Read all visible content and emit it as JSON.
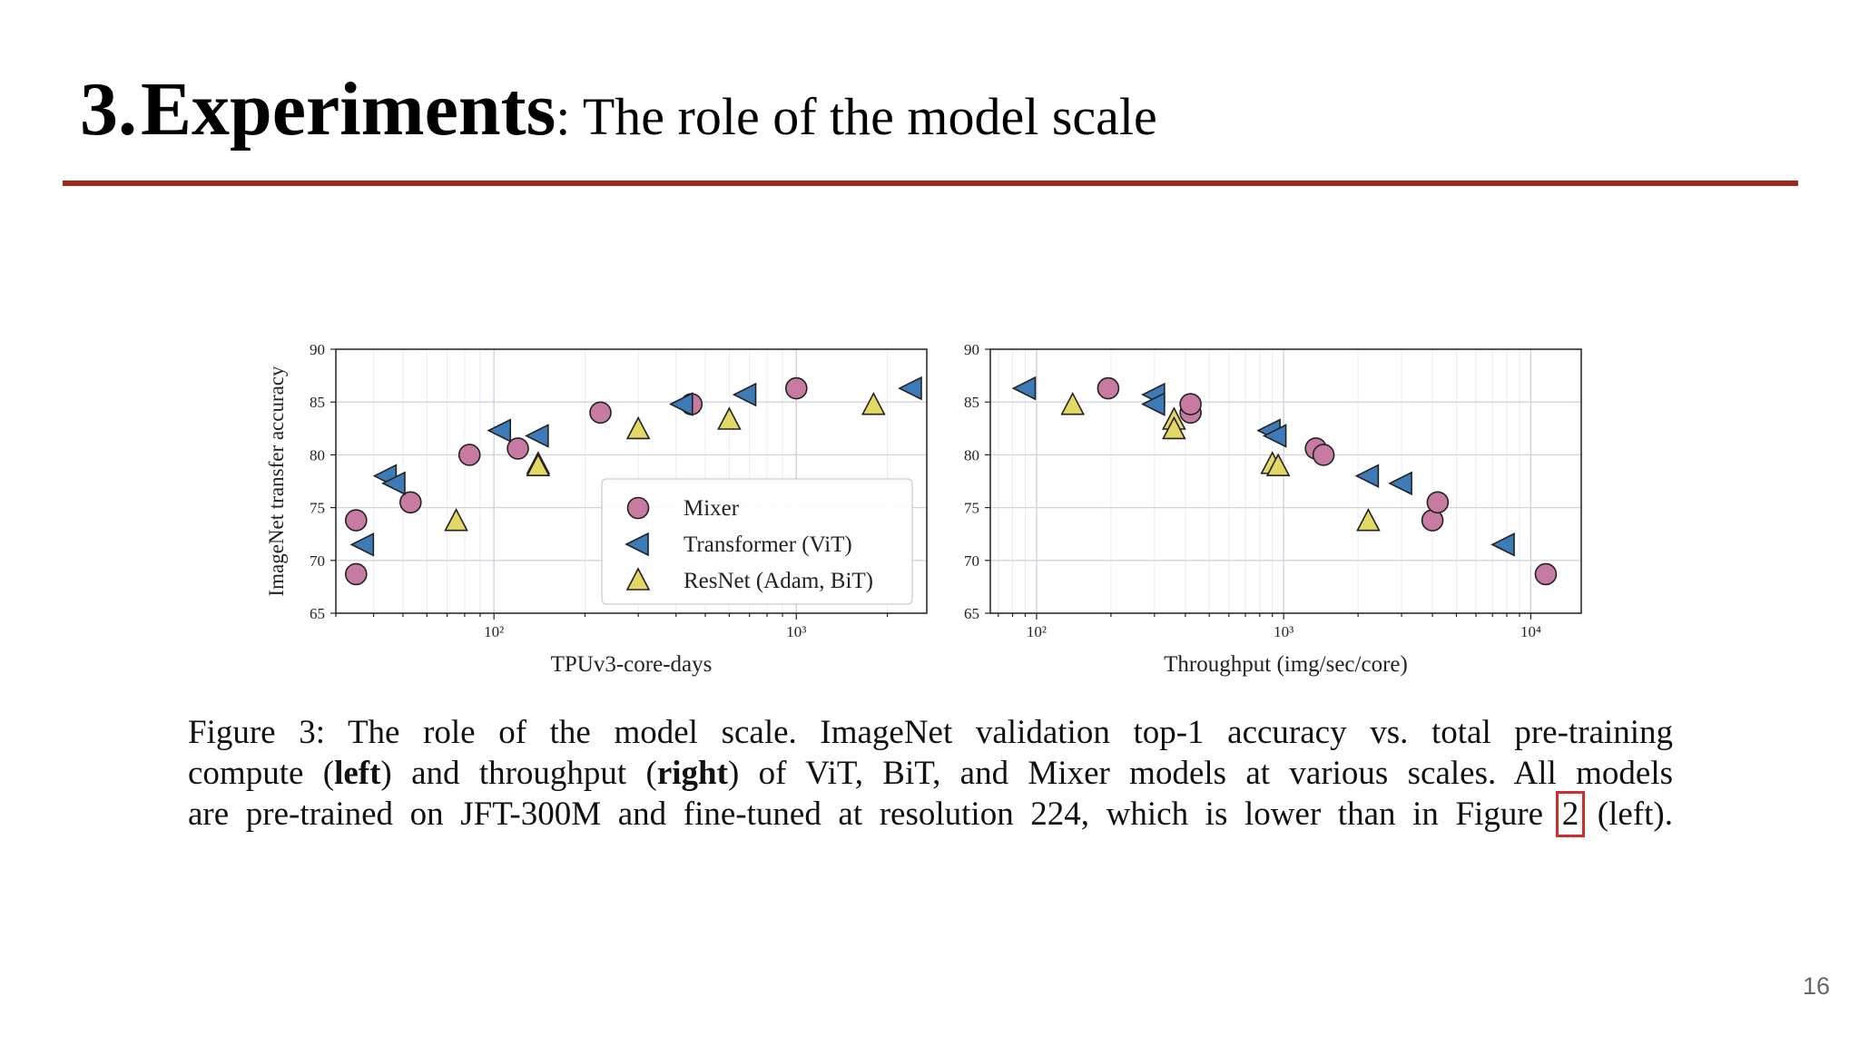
{
  "slide": {
    "title_num": "3.",
    "title_strong": "Experiments",
    "title_rest": ": The role of the model scale",
    "page_number": "16",
    "accent_color": "#a0271b"
  },
  "figure": {
    "caption": {
      "line1": "Figure 3: The role of the model scale. ImageNet validation top-1 accuracy vs. total pre-training",
      "line2_a": "compute (",
      "line2_left": "left",
      "line2_b": ") and throughput (",
      "line2_right": "right",
      "line2_c": ") of ViT, BiT, and Mixer models at various scales. All models",
      "line3_a": "are pre-trained on JFT-300M and fine-tuned at resolution 224, which is lower than in Figure ",
      "line3_ref": "2",
      "line3_b": " (left)."
    }
  },
  "chart_data": [
    {
      "type": "scatter",
      "title": "",
      "xlabel": "TPUv3-core-days",
      "ylabel": "ImageNet transfer accuracy",
      "xscale": "log",
      "xlim": [
        30,
        2700
      ],
      "ylim": [
        65,
        90
      ],
      "xticks": [
        100,
        1000
      ],
      "xtick_labels": [
        "10²",
        "10³"
      ],
      "yticks": [
        65,
        70,
        75,
        80,
        85,
        90
      ],
      "grid": true,
      "legend": "lower-right",
      "series": [
        {
          "name": "Mixer",
          "marker": "circle",
          "color": "#c87ba2",
          "points": [
            [
              35,
              73.8
            ],
            [
              35,
              68.7
            ],
            [
              53,
              75.5
            ],
            [
              83,
              80
            ],
            [
              120,
              80.6
            ],
            [
              225,
              84
            ],
            [
              450,
              84.8
            ],
            [
              1000,
              86.3
            ]
          ]
        },
        {
          "name": "Transformer (ViT)",
          "marker": "triangle-left",
          "color": "#3d7ab8",
          "points": [
            [
              37,
              71.5
            ],
            [
              44,
              78
            ],
            [
              47,
              77.3
            ],
            [
              105,
              82.3
            ],
            [
              140,
              81.8
            ],
            [
              420,
              84.8
            ],
            [
              680,
              85.7
            ],
            [
              2400,
              86.3
            ]
          ]
        },
        {
          "name": "ResNet (Adam, BiT)",
          "marker": "triangle-up",
          "color": "#e3d765",
          "points": [
            [
              75,
              73.7
            ],
            [
              140,
              79.1
            ],
            [
              140,
              78.9
            ],
            [
              300,
              82.4
            ],
            [
              600,
              83.3
            ],
            [
              1800,
              84.7
            ]
          ]
        }
      ]
    },
    {
      "type": "scatter",
      "title": "",
      "xlabel": "Throughput (img/sec/core)",
      "ylabel": "",
      "xscale": "log",
      "xlim": [
        65,
        16000
      ],
      "ylim": [
        65,
        90
      ],
      "xticks": [
        100,
        1000,
        10000
      ],
      "xtick_labels": [
        "10²",
        "10³",
        "10⁴"
      ],
      "yticks": [
        65,
        70,
        75,
        80,
        85,
        90
      ],
      "grid": true,
      "series": [
        {
          "name": "Mixer",
          "marker": "circle",
          "color": "#c87ba2",
          "points": [
            [
              195,
              86.3
            ],
            [
              420,
              84
            ],
            [
              420,
              84.8
            ],
            [
              1350,
              80.6
            ],
            [
              1450,
              80
            ],
            [
              4000,
              73.8
            ],
            [
              4200,
              75.5
            ],
            [
              11500,
              68.7
            ]
          ]
        },
        {
          "name": "Transformer (ViT)",
          "marker": "triangle-left",
          "color": "#3d7ab8",
          "points": [
            [
              90,
              86.3
            ],
            [
              300,
              85.7
            ],
            [
              300,
              84.8
            ],
            [
              880,
              82.3
            ],
            [
              930,
              81.8
            ],
            [
              2200,
              78
            ],
            [
              3000,
              77.3
            ],
            [
              7800,
              71.5
            ]
          ]
        },
        {
          "name": "ResNet (Adam, BiT)",
          "marker": "triangle-up",
          "color": "#e3d765",
          "points": [
            [
              140,
              84.7
            ],
            [
              360,
              83.3
            ],
            [
              360,
              82.4
            ],
            [
              900,
              79.1
            ],
            [
              950,
              78.9
            ],
            [
              2200,
              73.7
            ]
          ]
        }
      ]
    }
  ]
}
